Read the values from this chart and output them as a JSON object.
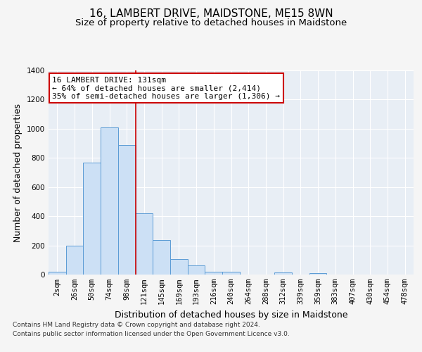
{
  "title": "16, LAMBERT DRIVE, MAIDSTONE, ME15 8WN",
  "subtitle": "Size of property relative to detached houses in Maidstone",
  "xlabel": "Distribution of detached houses by size in Maidstone",
  "ylabel": "Number of detached properties",
  "bar_labels": [
    "2sqm",
    "26sqm",
    "50sqm",
    "74sqm",
    "98sqm",
    "121sqm",
    "145sqm",
    "169sqm",
    "193sqm",
    "216sqm",
    "240sqm",
    "264sqm",
    "288sqm",
    "312sqm",
    "339sqm",
    "359sqm",
    "383sqm",
    "407sqm",
    "430sqm",
    "454sqm",
    "478sqm"
  ],
  "bar_values": [
    20,
    200,
    770,
    1010,
    890,
    420,
    235,
    105,
    65,
    20,
    20,
    0,
    0,
    15,
    0,
    10,
    0,
    0,
    0,
    0,
    0
  ],
  "bar_color": "#cce0f5",
  "bar_edge_color": "#5b9bd5",
  "vline_x_index": 4.5,
  "vline_color": "#cc0000",
  "annotation_text": "16 LAMBERT DRIVE: 131sqm\n← 64% of detached houses are smaller (2,414)\n35% of semi-detached houses are larger (1,306) →",
  "annotation_box_color": "#ffffff",
  "annotation_border_color": "#cc0000",
  "ylim": [
    0,
    1400
  ],
  "yticks": [
    0,
    200,
    400,
    600,
    800,
    1000,
    1200,
    1400
  ],
  "footer_line1": "Contains HM Land Registry data © Crown copyright and database right 2024.",
  "footer_line2": "Contains public sector information licensed under the Open Government Licence v3.0.",
  "plot_bg_color": "#e8eef5",
  "fig_bg_color": "#f5f5f5",
  "title_fontsize": 11,
  "subtitle_fontsize": 9.5,
  "tick_fontsize": 7.5,
  "ylabel_fontsize": 9,
  "xlabel_fontsize": 9,
  "footer_fontsize": 6.5
}
